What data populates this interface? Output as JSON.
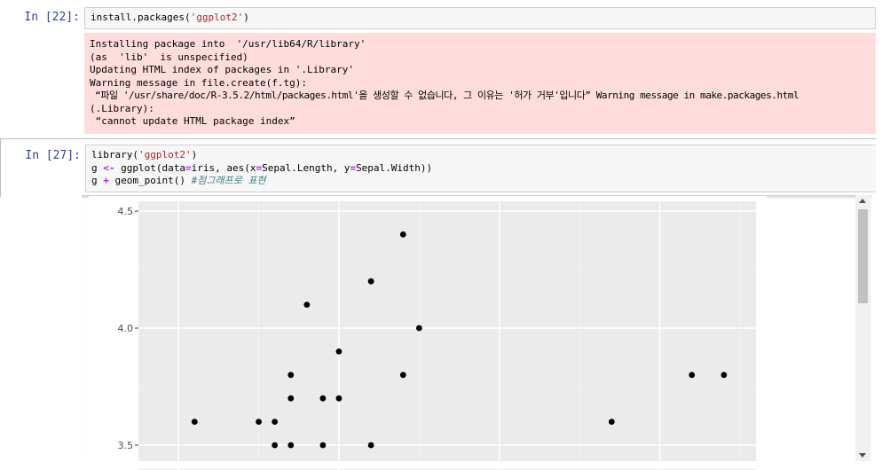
{
  "cells": [
    {
      "prompt": "In [22]:",
      "code": "install.packages('ggplot2')",
      "stderr": [
        "Installing package into  '/usr/lib64/R/library'",
        "(as  'lib'  is unspecified)",
        "Updating HTML index of packages in '.Library'",
        "Warning message in file.create(f.tg):",
        " “파일 '/usr/share/doc/R-3.5.2/html/packages.html'을 생성할 수 없습니다, 그 이유는 '허가 거부'입니다” Warning message in make.packages.html",
        "(.Library):",
        " “cannot update HTML package index”"
      ]
    },
    {
      "prompt": "In [27]:",
      "code": {
        "line1_a": "library(",
        "line1_s": "'ggplot2'",
        "line1_b": ")",
        "line2_a": "g ",
        "line2_op": "<-",
        "line2_b": " ggplot(data",
        "line2_eq1": "=",
        "line2_c": "iris, aes(x",
        "line2_eq2": "=",
        "line2_d": "Sepal.Length, y",
        "line2_eq3": "=",
        "line2_e": "Sepal.Width))",
        "line3_a": "g ",
        "line3_op": "+",
        "line3_b": " geom_point() ",
        "line3_comment": "#점그래프로 표현"
      }
    }
  ],
  "chart_data": {
    "type": "scatter",
    "xlim": [
      4.25,
      8.1
    ],
    "ylim": [
      3.43,
      4.5
    ],
    "yticks": [
      {
        "value": 3.5,
        "label": "3.5"
      },
      {
        "value": 4.0,
        "label": "4.0"
      },
      {
        "value": 4.5,
        "label": "4.5"
      }
    ],
    "xticks_major": [
      4.5,
      5.5,
      6.5,
      7.5
    ],
    "xticks_minor": [
      5.0,
      6.0,
      7.0,
      8.0
    ],
    "points": [
      [
        4.6,
        3.6
      ],
      [
        5.0,
        3.6
      ],
      [
        5.1,
        3.6
      ],
      [
        5.1,
        3.5
      ],
      [
        5.2,
        3.5
      ],
      [
        5.4,
        3.5
      ],
      [
        5.7,
        3.5
      ],
      [
        5.2,
        3.7
      ],
      [
        5.2,
        3.8
      ],
      [
        5.3,
        4.1
      ],
      [
        5.4,
        3.7
      ],
      [
        5.5,
        3.7
      ],
      [
        5.5,
        3.9
      ],
      [
        5.7,
        4.2
      ],
      [
        5.9,
        4.4
      ],
      [
        5.9,
        3.8
      ],
      [
        6.0,
        4.0
      ],
      [
        7.2,
        3.6
      ],
      [
        7.7,
        3.8
      ],
      [
        7.9,
        3.8
      ]
    ],
    "grid": true,
    "panel_background": "#ebebeb",
    "point_color": "#000000"
  }
}
